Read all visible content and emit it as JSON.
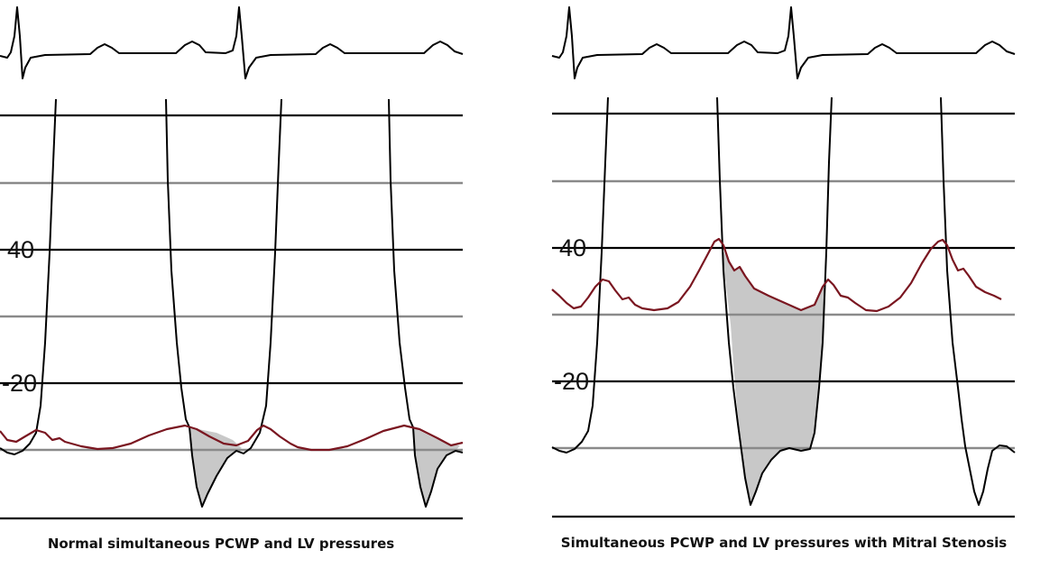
{
  "panels": [
    {
      "id": "normal",
      "caption": "Normal simultaneous PCWP and LV pressures",
      "tick_labels": [
        "40",
        "-20"
      ]
    },
    {
      "id": "mitral-stenosis",
      "caption": "Simultaneous PCWP and LV pressures with Mitral Stenosis",
      "tick_labels": [
        "40",
        "-20"
      ]
    }
  ],
  "colors": {
    "ecg": "#000000",
    "lv_pressure": "#000000",
    "pcwp": "#7a1620",
    "gradient_fill": "#c8c8c8",
    "grid_major": "#000000",
    "grid_minor": "#8a8a8a"
  }
}
